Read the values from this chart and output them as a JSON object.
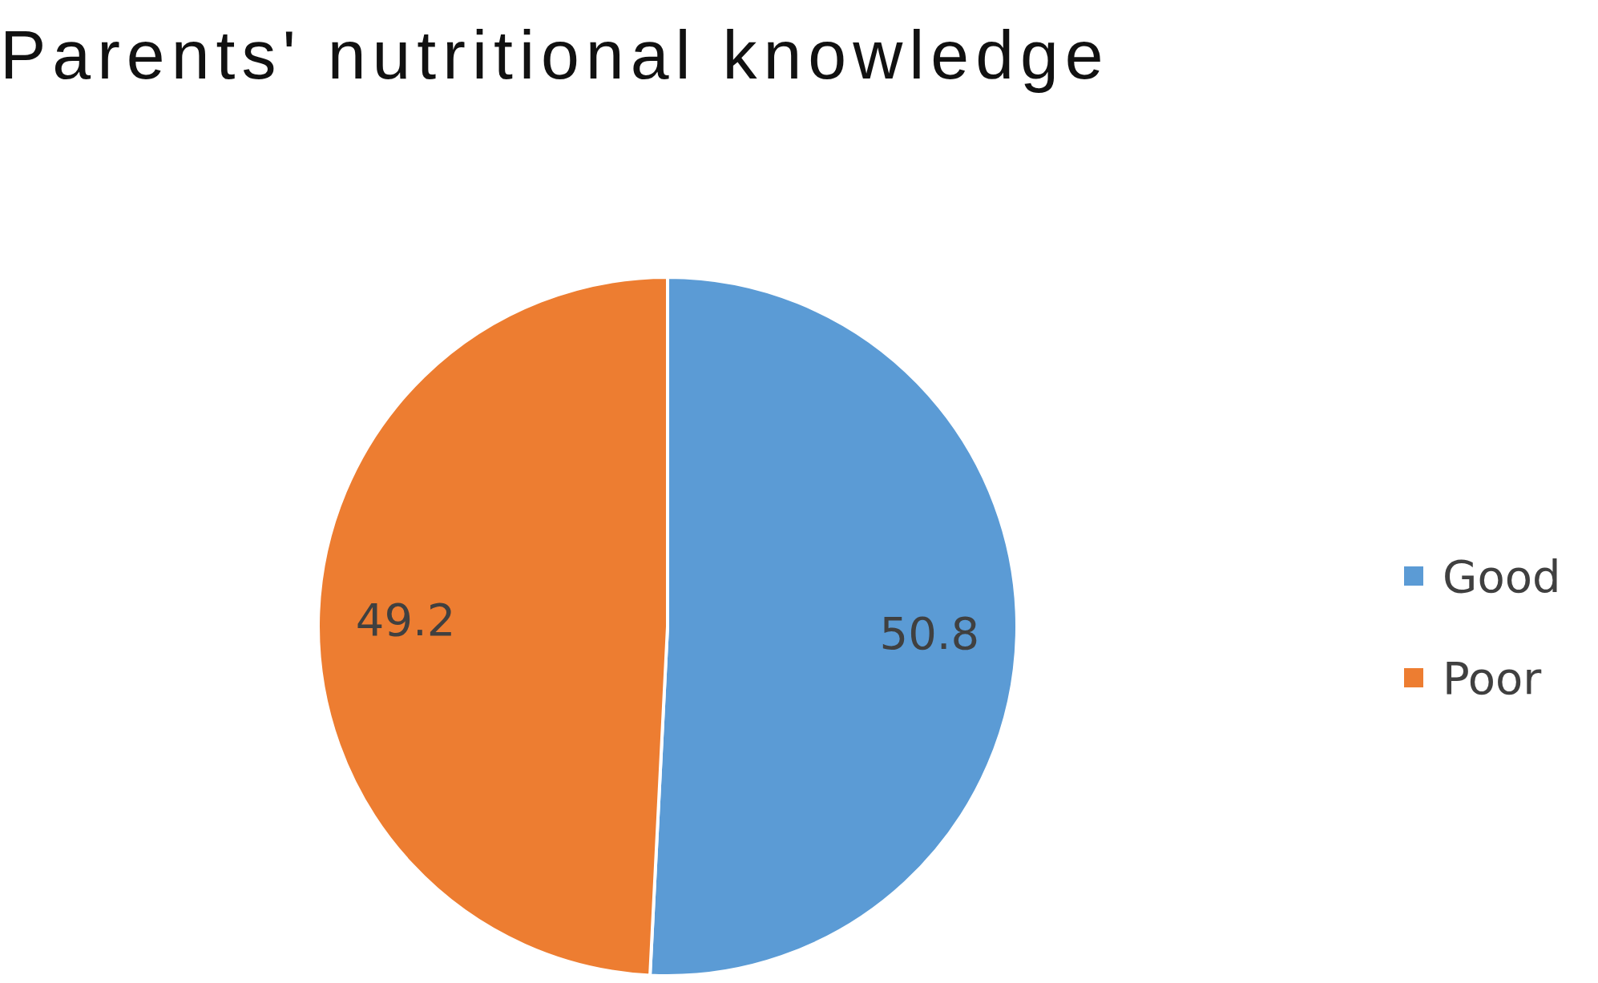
{
  "chart_data": {
    "type": "pie",
    "title": "Parents' nutritional knowledge",
    "categories": [
      "Good",
      "Poor"
    ],
    "values": [
      50.8,
      49.2
    ],
    "colors": [
      "#5b9bd5",
      "#ed7d31"
    ],
    "data_labels": true,
    "legend": "right"
  }
}
